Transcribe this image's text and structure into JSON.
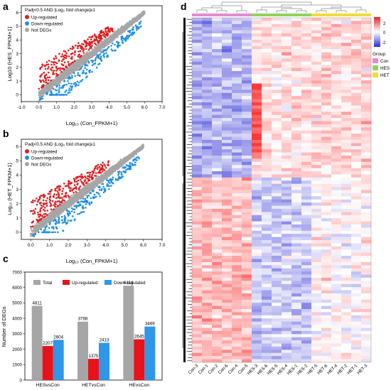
{
  "chart_data": [
    {
      "panel": "a",
      "type": "scatter",
      "legend_title": "Padj<0.5  AND  |Log₂ fold change|≥1",
      "xlabel": "Log₁₀ (Con_FPKM+1)",
      "ylabel": "Log10 (HES_FPKM+1)",
      "xticks": [
        "-1.0",
        "0.0",
        "1.0",
        "2.0",
        "3.0",
        "4.0",
        "5.0",
        "6.0",
        "7.0"
      ],
      "yticks": [
        "0",
        "1",
        "2",
        "3",
        "4",
        "5",
        "6"
      ],
      "xlim": [
        -1,
        7
      ],
      "ylim": [
        -0.5,
        6.5
      ],
      "legend_position": "top-left",
      "series": [
        {
          "name": "Up-regulated",
          "color": "#e31a1c"
        },
        {
          "name": "Down-regulated",
          "color": "#1f8fe8"
        },
        {
          "name": "Not DEGs",
          "color": "#a6a6a6"
        }
      ]
    },
    {
      "panel": "b",
      "type": "scatter",
      "legend_title": "Padj<0.5  AND  |Log₂ fold change|≥1",
      "xlabel": "Log₁₀ (Con_FPKM+1)",
      "ylabel": "Log₁₀ (HET_FPKM+1)",
      "xticks": [
        "0.0",
        "1.0",
        "2.0",
        "3.0",
        "4.0",
        "5.0",
        "6.0",
        "7.0"
      ],
      "yticks": [
        "0",
        "1",
        "2",
        "3",
        "4",
        "5",
        "6"
      ],
      "xlim": [
        -0.5,
        7
      ],
      "ylim": [
        -0.5,
        6.5
      ],
      "legend_position": "top-left",
      "series": [
        {
          "name": "Up-regulated",
          "color": "#e31a1c"
        },
        {
          "name": "Down-regulated",
          "color": "#1f8fe8"
        },
        {
          "name": "Not DEGs",
          "color": "#a6a6a6"
        }
      ]
    },
    {
      "panel": "c",
      "type": "bar",
      "ylabel": "Number of DEGs",
      "ylim": [
        0,
        7000
      ],
      "yticks": [
        "0",
        "1000",
        "2000",
        "3000",
        "4000",
        "5000",
        "6000",
        "7000"
      ],
      "categories": [
        "HESvsCon",
        "HETvsCon",
        "HEvsCon"
      ],
      "series": [
        {
          "name": "Total",
          "color": "#a6a6a6",
          "values": [
            4811,
            3788,
            6114
          ]
        },
        {
          "name": "Up-regulated",
          "color": "#e8121a",
          "values": [
            2207,
            1375,
            2645
          ]
        },
        {
          "name": "Down-regulated",
          "color": "#2f97e8",
          "values": [
            2604,
            2413,
            3469
          ]
        }
      ],
      "legend_position": "top"
    },
    {
      "panel": "d",
      "type": "heatmap",
      "columns": [
        "Con-3",
        "Con-1",
        "Con-2",
        "Con-6",
        "Con-4",
        "Con-5",
        "HES-3",
        "HES-6",
        "HES-5",
        "HES-4",
        "HES-1",
        "HES-2",
        "HET-5",
        "HET-6",
        "HET-4",
        "HET-2",
        "HET-1",
        "HET-3"
      ],
      "groups": [
        "Con",
        "Con",
        "Con",
        "Con",
        "Con",
        "Con",
        "HES",
        "HES",
        "HES",
        "HES",
        "HES",
        "HES",
        "HET",
        "HET",
        "HET",
        "HET",
        "HET",
        "HET"
      ],
      "colorbar_ticks": [
        "2",
        "0",
        "-2"
      ],
      "legend_title": "Group",
      "legend": [
        {
          "name": "Con",
          "color": "#e58ad0"
        },
        {
          "name": "HES",
          "color": "#8fd35a"
        },
        {
          "name": "HET",
          "color": "#f2dd3a"
        }
      ]
    }
  ],
  "panel_labels": {
    "a": "a",
    "b": "b",
    "c": "c",
    "d": "d"
  }
}
